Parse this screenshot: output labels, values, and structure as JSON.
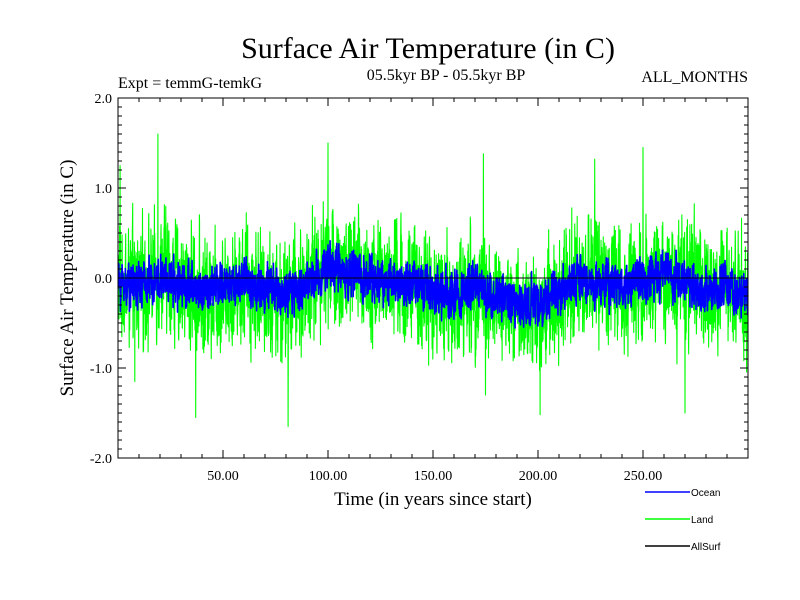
{
  "chart_data": {
    "type": "line",
    "title": "Surface Air Temperature (in C)",
    "experiment": "Expt = temmG-temkG",
    "period": "05.5kyr BP - 05.5kyr BP",
    "months": "ALL_MONTHS",
    "xlabel": "Time (in years since start)",
    "ylabel": "Surface Air Temperature (in C)",
    "xlim": [
      0,
      300
    ],
    "ylim": [
      -2.0,
      2.0
    ],
    "x_ticks": [
      {
        "value": 50,
        "label": "50.00"
      },
      {
        "value": 100,
        "label": "100.00"
      },
      {
        "value": 150,
        "label": "150.00"
      },
      {
        "value": 200,
        "label": "200.00"
      },
      {
        "value": 250,
        "label": "250.00"
      }
    ],
    "y_ticks": [
      {
        "value": 2.0,
        "label": "2.0"
      },
      {
        "value": 1.0,
        "label": "1.0"
      },
      {
        "value": 0.0,
        "label": "0.0"
      },
      {
        "value": -1.0,
        "label": "-1.0"
      },
      {
        "value": -2.0,
        "label": "-2.0"
      }
    ],
    "zero_line": 0.0,
    "series": [
      {
        "name": "Ocean",
        "color": "#0000ff",
        "samples_per_year": 12,
        "noise_amplitude": 0.17,
        "trend_x": [
          0,
          10,
          20,
          30,
          40,
          50,
          60,
          70,
          80,
          90,
          100,
          110,
          120,
          130,
          140,
          150,
          160,
          170,
          180,
          190,
          200,
          210,
          220,
          230,
          240,
          250,
          260,
          270,
          280,
          290,
          300
        ],
        "trend_y": [
          -0.05,
          -0.08,
          0.0,
          -0.05,
          -0.15,
          -0.08,
          -0.05,
          -0.1,
          -0.2,
          -0.05,
          0.15,
          0.05,
          0.0,
          -0.05,
          -0.05,
          -0.15,
          -0.2,
          -0.1,
          -0.2,
          -0.3,
          -0.28,
          -0.15,
          0.0,
          -0.05,
          -0.08,
          0.0,
          0.05,
          -0.05,
          -0.12,
          -0.1,
          -0.2
        ]
      },
      {
        "name": "Land",
        "color": "#00ff00",
        "samples_per_year": 12,
        "noise_amplitude": 0.45,
        "trend_x": [
          0,
          10,
          20,
          30,
          40,
          50,
          60,
          70,
          80,
          90,
          100,
          110,
          120,
          130,
          140,
          150,
          160,
          170,
          180,
          190,
          200,
          210,
          220,
          230,
          240,
          250,
          260,
          270,
          280,
          290,
          300
        ],
        "trend_y": [
          -0.05,
          -0.1,
          0.05,
          -0.05,
          -0.2,
          -0.1,
          -0.05,
          -0.15,
          -0.3,
          -0.05,
          0.2,
          0.05,
          0.0,
          -0.05,
          -0.1,
          -0.2,
          -0.3,
          -0.1,
          -0.25,
          -0.4,
          -0.35,
          -0.15,
          0.05,
          -0.05,
          -0.1,
          0.05,
          0.05,
          -0.05,
          -0.15,
          -0.1,
          -0.25
        ],
        "spikes": [
          {
            "x": 19,
            "y": 1.6
          },
          {
            "x": 1,
            "y": 1.25
          },
          {
            "x": 100,
            "y": 1.5
          },
          {
            "x": 174,
            "y": 1.38
          },
          {
            "x": 250,
            "y": 1.45
          },
          {
            "x": 227,
            "y": 1.32
          },
          {
            "x": 37,
            "y": -1.55
          },
          {
            "x": 81,
            "y": -1.65
          },
          {
            "x": 201,
            "y": -1.52
          },
          {
            "x": 270,
            "y": -1.5
          },
          {
            "x": 8,
            "y": -1.15
          },
          {
            "x": 175,
            "y": -1.3
          }
        ]
      },
      {
        "name": "AllSurf",
        "color": "#000000",
        "values": []
      }
    ],
    "legend": [
      {
        "label": "Ocean",
        "color": "#0000ff"
      },
      {
        "label": "Land",
        "color": "#00ff00"
      },
      {
        "label": "AllSurf",
        "color": "#000000"
      }
    ]
  }
}
